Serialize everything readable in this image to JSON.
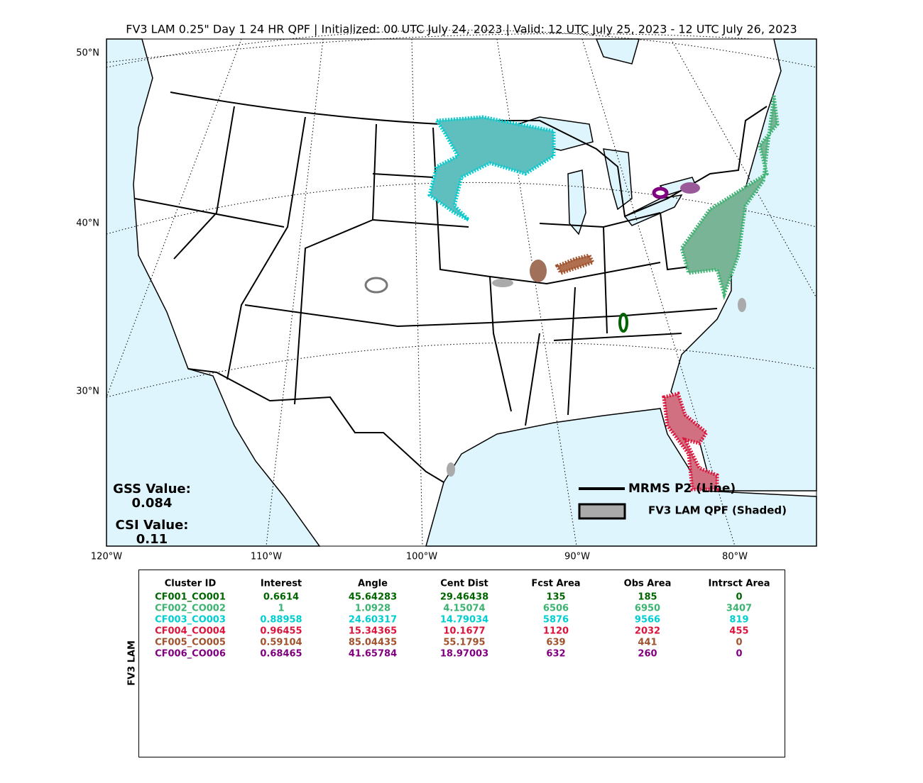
{
  "title": "FV3 LAM 0.25\" Day 1 24 HR QPF | Initialized: 00 UTC July 24, 2023 | Valid: 12 UTC July 25, 2023 - 12 UTC July 26, 2023",
  "map": {
    "lat_labels": [
      "50°N",
      "40°N",
      "30°N"
    ],
    "lon_labels": [
      "120°W",
      "110°W",
      "100°W",
      "90°W",
      "80°W"
    ],
    "legend": [
      {
        "label": "MRMS P2 (Line)"
      },
      {
        "label": "FV3 LAM QPF (Shaded)"
      }
    ],
    "stats": {
      "gss_label": "GSS Value:",
      "gss": "0.084",
      "csi_label": "CSI Value:",
      "csi": "0.11"
    }
  },
  "table": {
    "side_label": "FV3 LAM",
    "header": [
      "Cluster ID",
      "Interest",
      "Angle",
      "Cent Dist",
      "Fcst Area",
      "Obs Area",
      "Intrsct Area"
    ],
    "rows": [
      {
        "color": "#006400",
        "cells": [
          "CF001_CO001",
          "0.6614",
          "45.64283",
          "29.46438",
          "135",
          "185",
          "0"
        ]
      },
      {
        "color": "#3cb371",
        "cells": [
          "CF002_CO002",
          "1",
          "1.0928",
          "4.15074",
          "6506",
          "6950",
          "3407"
        ]
      },
      {
        "color": "#00ced1",
        "cells": [
          "CF003_CO003",
          "0.88958",
          "24.60317",
          "14.79034",
          "5876",
          "9566",
          "819"
        ]
      },
      {
        "color": "#dc143c",
        "cells": [
          "CF004_CO004",
          "0.96455",
          "15.34365",
          "10.1677",
          "1120",
          "2032",
          "455"
        ]
      },
      {
        "color": "#a0522d",
        "cells": [
          "CF005_CO005",
          "0.59104",
          "85.04435",
          "55.1795",
          "639",
          "441",
          "0"
        ]
      },
      {
        "color": "#800080",
        "cells": [
          "CF006_CO006",
          "0.68465",
          "41.65784",
          "18.97003",
          "632",
          "260",
          "0"
        ]
      }
    ]
  }
}
